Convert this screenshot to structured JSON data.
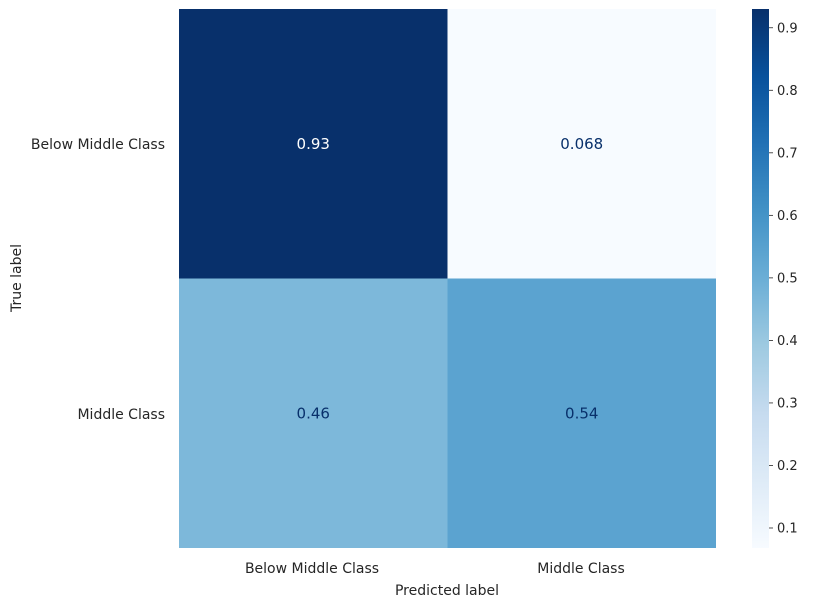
{
  "chart_data": {
    "type": "heatmap",
    "title": "",
    "xlabel": "Predicted label",
    "ylabel": "True label",
    "x_categories": [
      "Below Middle Class",
      "Middle Class"
    ],
    "y_categories": [
      "Below Middle Class",
      "Middle Class"
    ],
    "values": [
      [
        0.93,
        0.068
      ],
      [
        0.46,
        0.54
      ]
    ],
    "value_labels": [
      [
        "0.93",
        "0.068"
      ],
      [
        "0.46",
        "0.54"
      ]
    ],
    "colormap": "Blues",
    "colorbar": {
      "range": [
        0.068,
        0.93
      ],
      "ticks": [
        0.1,
        0.2,
        0.3,
        0.4,
        0.5,
        0.6,
        0.7,
        0.8,
        0.9
      ],
      "tick_labels": [
        "0.1",
        "0.2",
        "0.3",
        "0.4",
        "0.5",
        "0.6",
        "0.7",
        "0.8",
        "0.9"
      ]
    },
    "grid": false
  }
}
